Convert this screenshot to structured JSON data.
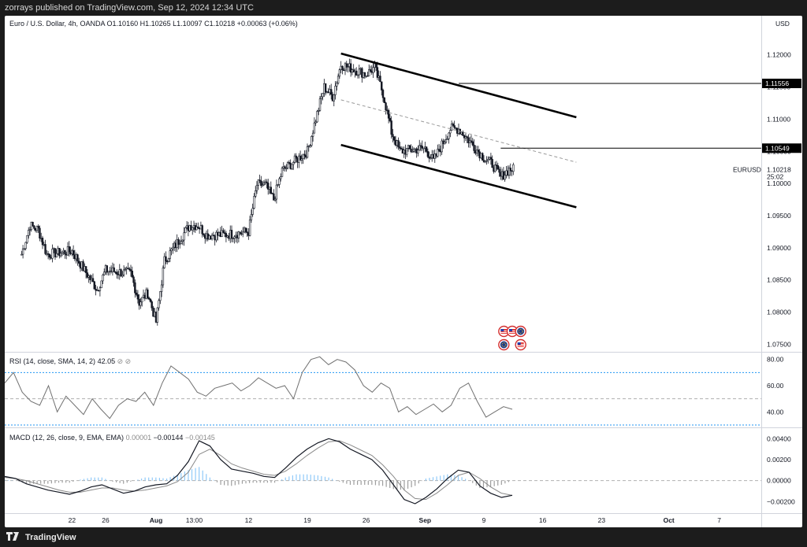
{
  "header": {
    "publish_line": "zorrays published on TradingView.com, Sep 12, 2024 12:34 UTC"
  },
  "footer": {
    "brand": "TradingView"
  },
  "colors": {
    "candle": "#131722",
    "rsi_line": "#707070",
    "rsi_band": "#2196f3",
    "macd_line": "#131722",
    "signal_line": "#8a8a8a",
    "hist_pos": "#90caf9",
    "hist_neg": "#9e9e9e",
    "background": "#ffffff"
  },
  "chart_data": [
    {
      "type": "candlestick",
      "legend": "Euro / U.S. Dollar, 4h, OANDA  O1.10160  H1.10265  L1.10097  C1.10218  +0.00063 (+0.06%)",
      "symbol_label": "EURUSD",
      "last_price": "1.10218",
      "countdown": "25:02",
      "currency": "USD",
      "y_ticks": [
        "1.12000",
        "1.11500",
        "1.11000",
        "1.10500",
        "1.10000",
        "1.09500",
        "1.09000",
        "1.08500",
        "1.08000",
        "1.07500"
      ],
      "ylim": [
        1.0742,
        1.1251
      ],
      "x_ticks": [
        "22",
        "26",
        "Aug",
        "13:00",
        "12",
        "19",
        "26",
        "Sep",
        "9",
        "16",
        "23",
        "Oct",
        "7"
      ],
      "x_tick_dates": [
        "2024-07-22",
        "2024-07-26",
        "2024-08-01",
        "2024-08-05 13:00",
        "2024-08-12",
        "2024-08-19",
        "2024-08-26",
        "2024-09-02",
        "2024-09-09",
        "2024-09-16",
        "2024-09-23",
        "2024-10-01",
        "2024-10-07"
      ],
      "price_path": {
        "dates": [
          "2024-07-16",
          "2024-07-17",
          "2024-07-18",
          "2024-07-19",
          "2024-07-22",
          "2024-07-24",
          "2024-07-25",
          "2024-07-26",
          "2024-07-29",
          "2024-07-30",
          "2024-07-31",
          "2024-08-01",
          "2024-08-02",
          "2024-08-05",
          "2024-08-06",
          "2024-08-07",
          "2024-08-08",
          "2024-08-09",
          "2024-08-12",
          "2024-08-13",
          "2024-08-14",
          "2024-08-15",
          "2024-08-16",
          "2024-08-19",
          "2024-08-20",
          "2024-08-21",
          "2024-08-22",
          "2024-08-23",
          "2024-08-26",
          "2024-08-27",
          "2024-08-28",
          "2024-08-29",
          "2024-08-30",
          "2024-09-02",
          "2024-09-03",
          "2024-09-04",
          "2024-09-05",
          "2024-09-06",
          "2024-09-09",
          "2024-09-10",
          "2024-09-11",
          "2024-09-12"
        ],
        "closes": [
          1.089,
          1.0935,
          1.0928,
          1.089,
          1.0895,
          1.0855,
          1.0835,
          1.0865,
          1.086,
          1.0815,
          1.083,
          1.0785,
          1.088,
          1.0935,
          1.0935,
          1.092,
          1.092,
          1.092,
          1.0925,
          1.0998,
          1.0998,
          1.0975,
          1.102,
          1.105,
          1.11,
          1.115,
          1.1135,
          1.1185,
          1.117,
          1.118,
          1.114,
          1.108,
          1.105,
          1.1055,
          1.1035,
          1.106,
          1.1085,
          1.1085,
          1.104,
          1.103,
          1.101,
          1.1022
        ]
      },
      "channel": {
        "upper": {
          "from": [
            "2024-08-23",
            1.1202
          ],
          "to": [
            "2024-09-20",
            1.1103
          ]
        },
        "lower": {
          "from": [
            "2024-08-23",
            1.106
          ],
          "to": [
            "2024-09-20",
            1.0963
          ]
        },
        "midline": {
          "from": [
            "2024-08-23",
            1.113
          ],
          "to": [
            "2024-09-20",
            1.1033
          ]
        }
      },
      "levels": [
        {
          "price": 1.11556,
          "label": "1.11556",
          "from_date": "2024-09-06"
        },
        {
          "price": 1.10549,
          "label": "1.10549",
          "from_date": "2024-09-11"
        }
      ],
      "events": [
        {
          "flag": "us",
          "date": "2024-09-11"
        },
        {
          "flag": "eu",
          "date": "2024-09-11"
        },
        {
          "flag": "us",
          "date": "2024-09-12"
        },
        {
          "flag": "eu",
          "date": "2024-09-13"
        },
        {
          "flag": "us",
          "date": "2024-09-13"
        }
      ]
    },
    {
      "type": "line",
      "legend_name": "RSI (14, close, SMA, 14, 2)",
      "legend_value": "42.05",
      "y_ticks": [
        "80.00",
        "60.00",
        "40.00"
      ],
      "ylim": [
        30,
        84
      ],
      "bands": [
        70,
        50,
        30
      ],
      "series": [
        {
          "values": [
            62,
            70,
            55,
            48,
            45,
            60,
            40,
            52,
            45,
            38,
            50,
            42,
            35,
            45,
            50,
            48,
            55,
            45,
            62,
            75,
            70,
            65,
            55,
            52,
            58,
            60,
            62,
            56,
            60,
            66,
            62,
            58,
            60,
            50,
            70,
            80,
            82,
            76,
            80,
            78,
            72,
            60,
            55,
            62,
            58,
            40,
            44,
            38,
            42,
            46,
            40,
            45,
            58,
            62,
            48,
            36,
            40,
            44,
            42
          ]
        }
      ]
    },
    {
      "type": "line+histogram",
      "legend_name": "MACD (12, 26, close, 9, EMA, EMA)",
      "legend_values": [
        "0.00001",
        "−0.00144",
        "−0.00145"
      ],
      "y_ticks": [
        "0.00400",
        "0.00200",
        "0.00000",
        "−0.00200"
      ],
      "ylim": [
        -0.0028,
        0.0047
      ],
      "series": [
        {
          "values": [
            0.0004,
            0.0002,
            -0.0003,
            -0.0006,
            -0.0009,
            -0.0011,
            -0.0013,
            -0.001,
            -0.0006,
            -0.0004,
            -0.0008,
            -0.0012,
            -0.001,
            -0.0006,
            -0.0004,
            -0.0003,
            0.0005,
            0.0018,
            0.0038,
            0.0033,
            0.002,
            0.0011,
            0.0009,
            0.0007,
            0.0004,
            0.0003,
            0.0012,
            0.0022,
            0.003,
            0.0036,
            0.004,
            0.0037,
            0.003,
            0.0025,
            0.002,
            0.001,
            -0.0004,
            -0.0018,
            -0.0022,
            -0.0016,
            -0.0008,
            0.0002,
            0.001,
            0.0008,
            -0.0005,
            -0.0012,
            -0.0016,
            -0.0014
          ]
        },
        {
          "values": [
            0.0003,
            0.0002,
            0.0,
            -0.0003,
            -0.0006,
            -0.0009,
            -0.0011,
            -0.0011,
            -0.0009,
            -0.0007,
            -0.0007,
            -0.0009,
            -0.001,
            -0.0009,
            -0.0007,
            -0.0005,
            -0.0001,
            0.0008,
            0.0025,
            0.003,
            0.0024,
            0.0016,
            0.0012,
            0.0009,
            0.0006,
            0.0005,
            0.0009,
            0.0016,
            0.0024,
            0.0031,
            0.0037,
            0.0038,
            0.0034,
            0.0029,
            0.0024,
            0.0015,
            0.0004,
            -0.0009,
            -0.0017,
            -0.0018,
            -0.0012,
            -0.0004,
            0.0005,
            0.0008,
            0.0002,
            -0.0006,
            -0.0012,
            -0.0014
          ]
        }
      ]
    }
  ]
}
